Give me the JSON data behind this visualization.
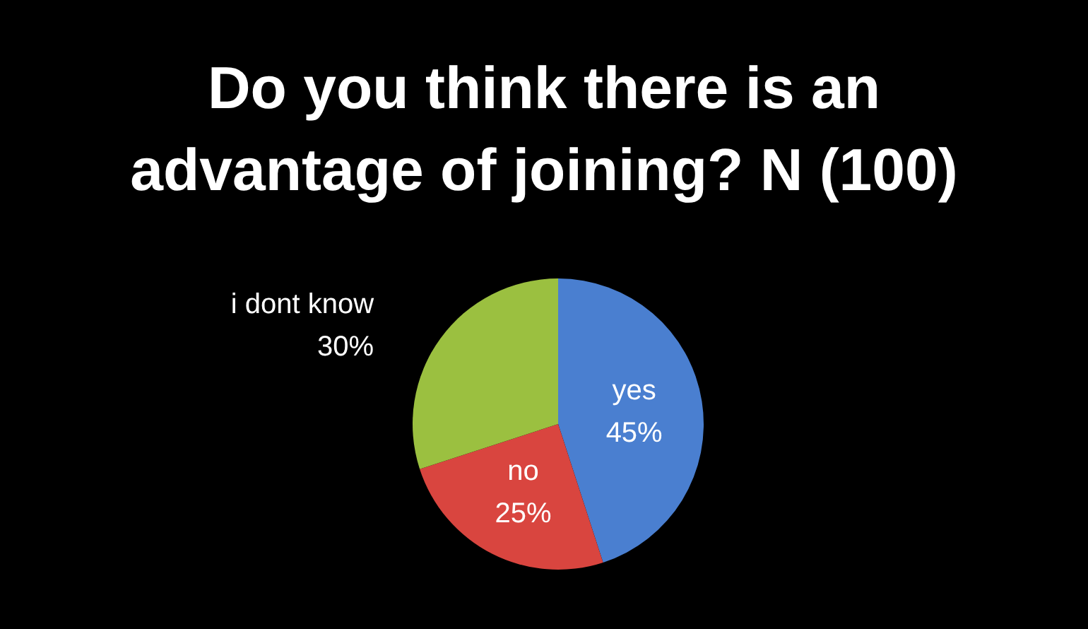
{
  "chart_data": {
    "type": "pie",
    "title": "Do you think there is an advantage of joining? N (100)",
    "categories": [
      "yes",
      "no",
      "i dont know"
    ],
    "values": [
      45,
      25,
      30
    ],
    "colors": [
      "#4a7fd0",
      "#d9453f",
      "#9bc040"
    ],
    "value_labels": [
      "45%",
      "25%",
      "30%"
    ],
    "legend": false
  }
}
